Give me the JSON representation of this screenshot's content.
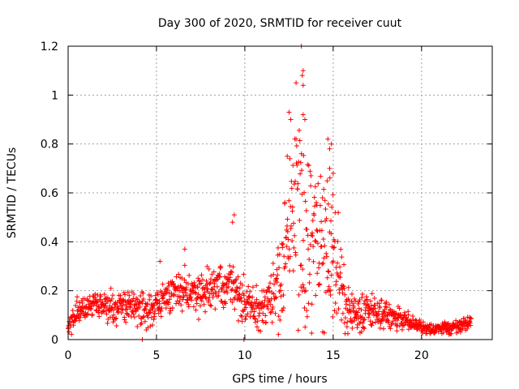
{
  "chart_data": {
    "type": "scatter",
    "title": "Day 300 of 2020, SRMTID for receiver cuut",
    "xlabel": "GPS time / hours",
    "ylabel": "SRMTID / TECUs",
    "xlim": [
      0,
      24
    ],
    "ylim": [
      0,
      1.2
    ],
    "x_ticks": [
      0,
      5,
      10,
      15,
      20
    ],
    "x_tick_labels": [
      "0",
      "5",
      "10",
      "15",
      "20"
    ],
    "y_ticks": [
      0,
      0.2,
      0.4,
      0.6,
      0.8,
      1.0,
      1.2
    ],
    "y_tick_labels": [
      "0",
      "0.2",
      "0.4",
      "0.6",
      "0.8",
      "1",
      "1.2"
    ],
    "grid": true,
    "marker": "+",
    "color": "#ff0000",
    "series": [
      {
        "name": "SRMTID",
        "trend": {
          "x": [
            0,
            0.5,
            1,
            1.5,
            2,
            2.5,
            3,
            3.5,
            4,
            4.5,
            5,
            5.5,
            6,
            6.5,
            7,
            7.5,
            8,
            8.5,
            9,
            9.5,
            10,
            10.5,
            11,
            11.5,
            12,
            12.3,
            12.6,
            13,
            13.3,
            13.6,
            14,
            14.3,
            14.6,
            15,
            15.3,
            15.6,
            16,
            16.5,
            17,
            17.5,
            18,
            18.5,
            19,
            19.5,
            20,
            20.5,
            21,
            21.5,
            22,
            22.5,
            22.8
          ],
          "y": [
            0.07,
            0.1,
            0.13,
            0.15,
            0.14,
            0.13,
            0.13,
            0.14,
            0.13,
            0.12,
            0.14,
            0.17,
            0.2,
            0.2,
            0.19,
            0.18,
            0.2,
            0.22,
            0.24,
            0.2,
            0.15,
            0.12,
            0.13,
            0.16,
            0.25,
            0.4,
            0.5,
            0.48,
            0.45,
            0.42,
            0.4,
            0.38,
            0.4,
            0.35,
            0.25,
            0.14,
            0.11,
            0.11,
            0.12,
            0.11,
            0.1,
            0.09,
            0.08,
            0.07,
            0.05,
            0.04,
            0.045,
            0.05,
            0.05,
            0.06,
            0.08
          ]
        },
        "spread": {
          "x": [
            0,
            5,
            9,
            11,
            12,
            13,
            14,
            15,
            16,
            20,
            23
          ],
          "y": [
            0.04,
            0.05,
            0.07,
            0.06,
            0.15,
            0.3,
            0.3,
            0.25,
            0.06,
            0.02,
            0.02
          ]
        },
        "outliers": [
          {
            "x": 13.2,
            "y": 1.2
          },
          {
            "x": 13.3,
            "y": 1.1
          },
          {
            "x": 13.25,
            "y": 1.08
          },
          {
            "x": 12.9,
            "y": 1.05
          },
          {
            "x": 13.3,
            "y": 1.04
          },
          {
            "x": 12.5,
            "y": 0.93
          },
          {
            "x": 13.3,
            "y": 0.92
          },
          {
            "x": 12.6,
            "y": 0.9
          },
          {
            "x": 13.4,
            "y": 0.9
          },
          {
            "x": 14.7,
            "y": 0.82
          },
          {
            "x": 14.9,
            "y": 0.8
          },
          {
            "x": 14.8,
            "y": 0.78
          },
          {
            "x": 12.4,
            "y": 0.75
          },
          {
            "x": 13.2,
            "y": 0.76
          },
          {
            "x": 14.8,
            "y": 0.7
          },
          {
            "x": 15.0,
            "y": 0.68
          },
          {
            "x": 9.4,
            "y": 0.51
          },
          {
            "x": 9.3,
            "y": 0.48
          },
          {
            "x": 6.6,
            "y": 0.37
          },
          {
            "x": 5.2,
            "y": 0.32
          },
          {
            "x": 4.2,
            "y": 0.0
          },
          {
            "x": 9.95,
            "y": 0.0
          }
        ]
      }
    ]
  }
}
